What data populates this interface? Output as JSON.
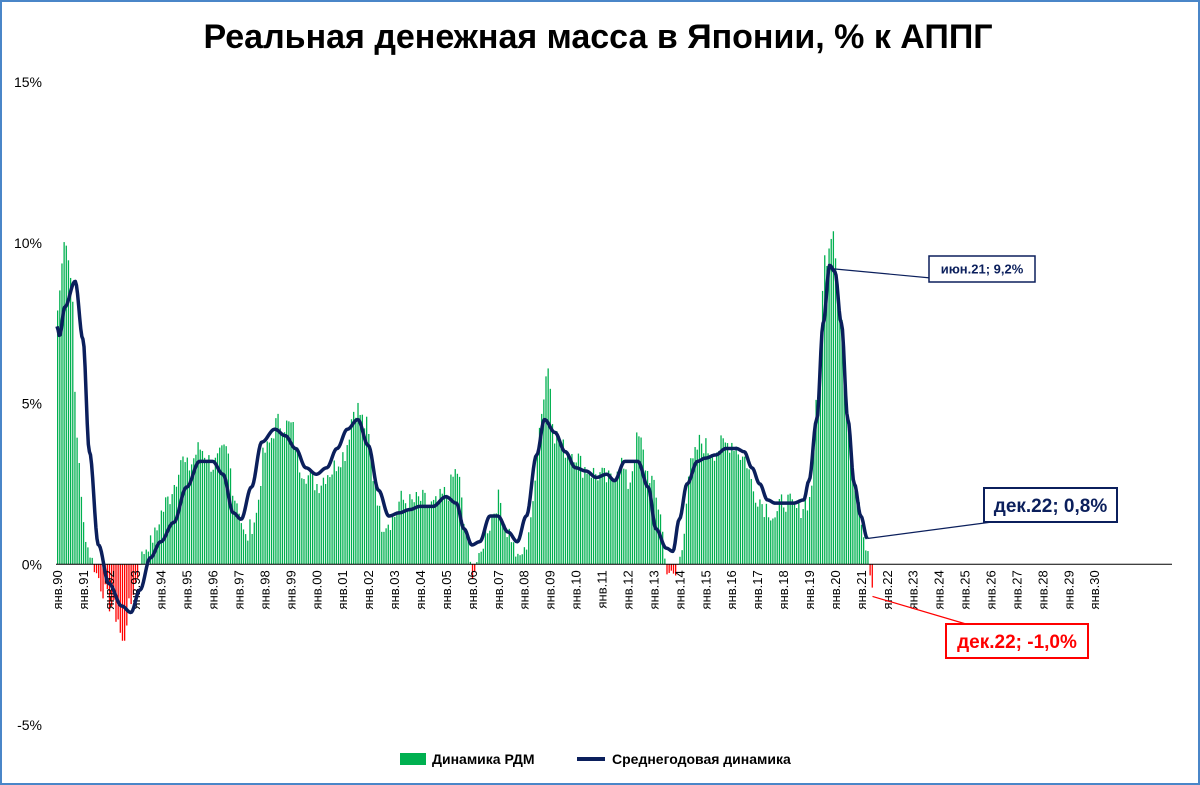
{
  "chart_data": {
    "type": "bar+line",
    "title": "Реальная денежная масса в Японии, % к АППГ",
    "ylim": [
      -5,
      15
    ],
    "y_ticks": [
      -5,
      0,
      5,
      10,
      15
    ],
    "y_tick_labels": [
      "-5%",
      "0%",
      "5%",
      "10%",
      "15%"
    ],
    "x_tick_labels": [
      "янв.90",
      "янв.91",
      "янв.92",
      "янв.93",
      "янв.94",
      "янв.95",
      "янв.96",
      "янв.97",
      "янв.98",
      "янв.99",
      "янв.00",
      "янв.01",
      "янв.02",
      "янв.03",
      "янв.04",
      "янв.05",
      "янв.06",
      "янв.07",
      "янв.08",
      "янв.09",
      "янв.10",
      "янв.11",
      "янв.12",
      "янв.13",
      "янв.14",
      "янв.15",
      "янв.16",
      "янв.17",
      "янв.18",
      "янв.19",
      "янв.20",
      "янв.21",
      "янв.22",
      "янв.23",
      "янв.24",
      "янв.25",
      "янв.26",
      "янв.27",
      "янв.28",
      "янв.29",
      "янв.30"
    ],
    "x_range_years": [
      1990,
      2031
    ],
    "grid": false,
    "legend_position": "bottom",
    "positive_color": "#00b050",
    "negative_color": "#ff0000",
    "line_color": "#0b1f5c",
    "bar_series": {
      "name": "Динамика РДМ",
      "anchors": [
        [
          1990.0,
          7.9
        ],
        [
          1990.25,
          10.2
        ],
        [
          1990.5,
          9.2
        ],
        [
          1990.75,
          4.0
        ],
        [
          1991.0,
          1.2
        ],
        [
          1991.25,
          0.3
        ],
        [
          1991.5,
          -0.3
        ],
        [
          1991.75,
          -0.8
        ],
        [
          1992.0,
          -1.2
        ],
        [
          1992.3,
          -1.6
        ],
        [
          1992.5,
          -2.5
        ],
        [
          1992.75,
          -1.4
        ],
        [
          1993.0,
          -0.6
        ],
        [
          1993.25,
          0.3
        ],
        [
          1993.5,
          0.6
        ],
        [
          1993.75,
          0.9
        ],
        [
          1994.0,
          1.6
        ],
        [
          1994.25,
          2.0
        ],
        [
          1994.5,
          2.5
        ],
        [
          1994.75,
          3.3
        ],
        [
          1995.0,
          3.0
        ],
        [
          1995.5,
          3.6
        ],
        [
          1996.0,
          3.1
        ],
        [
          1996.5,
          3.5
        ],
        [
          1996.9,
          2.0
        ],
        [
          1997.25,
          0.8
        ],
        [
          1997.6,
          1.4
        ],
        [
          1998.0,
          3.5
        ],
        [
          1998.5,
          4.4
        ],
        [
          1999.0,
          4.3
        ],
        [
          1999.4,
          3.0
        ],
        [
          1999.75,
          2.7
        ],
        [
          2000.0,
          2.5
        ],
        [
          2000.5,
          2.9
        ],
        [
          2001.0,
          3.4
        ],
        [
          2001.5,
          4.9
        ],
        [
          2001.9,
          4.3
        ],
        [
          2002.2,
          2.7
        ],
        [
          2002.5,
          1.3
        ],
        [
          2002.9,
          1.4
        ],
        [
          2003.25,
          2.0
        ],
        [
          2003.6,
          1.9
        ],
        [
          2004.0,
          2.0
        ],
        [
          2004.5,
          1.8
        ],
        [
          2005.0,
          2.2
        ],
        [
          2005.4,
          2.9
        ],
        [
          2005.75,
          1.0
        ],
        [
          2006.0,
          -0.3
        ],
        [
          2006.25,
          0.2
        ],
        [
          2006.6,
          1.2
        ],
        [
          2007.0,
          2.0
        ],
        [
          2007.4,
          1.0
        ],
        [
          2007.75,
          0.2
        ],
        [
          2008.0,
          0.4
        ],
        [
          2008.3,
          1.6
        ],
        [
          2008.6,
          4.5
        ],
        [
          2008.9,
          6.1
        ],
        [
          2009.2,
          4.0
        ],
        [
          2009.5,
          3.6
        ],
        [
          2009.9,
          3.5
        ],
        [
          2010.3,
          3.0
        ],
        [
          2010.8,
          2.8
        ],
        [
          2011.3,
          2.6
        ],
        [
          2011.7,
          3.2
        ],
        [
          2012.0,
          2.5
        ],
        [
          2012.4,
          3.9
        ],
        [
          2012.8,
          2.8
        ],
        [
          2013.2,
          1.8
        ],
        [
          2013.5,
          -0.2
        ],
        [
          2013.8,
          -0.4
        ],
        [
          2014.0,
          0.2
        ],
        [
          2014.4,
          3.0
        ],
        [
          2014.8,
          3.8
        ],
        [
          2015.2,
          3.5
        ],
        [
          2015.7,
          3.7
        ],
        [
          2016.0,
          3.8
        ],
        [
          2016.5,
          3.3
        ],
        [
          2016.9,
          2.2
        ],
        [
          2017.3,
          1.8
        ],
        [
          2017.7,
          1.5
        ],
        [
          2018.0,
          2.0
        ],
        [
          2018.5,
          1.7
        ],
        [
          2019.0,
          2.0
        ],
        [
          2019.3,
          5.0
        ],
        [
          2019.6,
          9.5
        ],
        [
          2019.9,
          10.5
        ],
        [
          2020.2,
          7.8
        ],
        [
          2020.5,
          4.5
        ],
        [
          2020.8,
          2.4
        ],
        [
          2021.2,
          0.6
        ],
        [
          2021.45,
          -1.0
        ]
      ]
    },
    "line_series": {
      "name": "Среднегодовая динамика",
      "anchors": [
        [
          1990.0,
          7.4
        ],
        [
          1990.1,
          7.1
        ],
        [
          1990.3,
          8.0
        ],
        [
          1990.7,
          8.8
        ],
        [
          1991.0,
          7.0
        ],
        [
          1991.25,
          3.5
        ],
        [
          1991.6,
          0.6
        ],
        [
          1992.0,
          -0.6
        ],
        [
          1992.5,
          -1.3
        ],
        [
          1992.85,
          -1.5
        ],
        [
          1993.2,
          -0.8
        ],
        [
          1993.6,
          0.2
        ],
        [
          1994.0,
          0.7
        ],
        [
          1994.5,
          1.3
        ],
        [
          1995.0,
          2.4
        ],
        [
          1995.5,
          3.2
        ],
        [
          1996.0,
          3.2
        ],
        [
          1996.4,
          2.8
        ],
        [
          1996.8,
          1.6
        ],
        [
          1997.1,
          1.4
        ],
        [
          1997.5,
          2.4
        ],
        [
          1997.9,
          3.8
        ],
        [
          1998.4,
          4.2
        ],
        [
          1998.8,
          4.0
        ],
        [
          1999.2,
          3.6
        ],
        [
          1999.6,
          3.0
        ],
        [
          2000.0,
          2.8
        ],
        [
          2000.4,
          3.0
        ],
        [
          2000.8,
          3.6
        ],
        [
          2001.2,
          4.2
        ],
        [
          2001.6,
          4.5
        ],
        [
          2002.0,
          3.7
        ],
        [
          2002.4,
          2.3
        ],
        [
          2002.8,
          1.5
        ],
        [
          2003.2,
          1.6
        ],
        [
          2003.6,
          1.7
        ],
        [
          2004.0,
          1.8
        ],
        [
          2004.5,
          1.8
        ],
        [
          2005.0,
          2.1
        ],
        [
          2005.4,
          1.9
        ],
        [
          2005.7,
          1.1
        ],
        [
          2006.0,
          0.6
        ],
        [
          2006.3,
          0.7
        ],
        [
          2006.7,
          1.5
        ],
        [
          2007.0,
          1.5
        ],
        [
          2007.4,
          1.0
        ],
        [
          2007.75,
          0.7
        ],
        [
          2008.1,
          1.5
        ],
        [
          2008.5,
          3.4
        ],
        [
          2008.8,
          4.5
        ],
        [
          2009.2,
          4.1
        ],
        [
          2009.6,
          3.5
        ],
        [
          2010.0,
          3.0
        ],
        [
          2010.4,
          2.9
        ],
        [
          2010.8,
          2.7
        ],
        [
          2011.2,
          2.8
        ],
        [
          2011.5,
          2.6
        ],
        [
          2011.9,
          3.2
        ],
        [
          2012.4,
          3.2
        ],
        [
          2012.8,
          2.4
        ],
        [
          2013.1,
          1.1
        ],
        [
          2013.5,
          0.5
        ],
        [
          2013.75,
          0.4
        ],
        [
          2014.0,
          1.4
        ],
        [
          2014.3,
          2.5
        ],
        [
          2014.7,
          3.2
        ],
        [
          2015.0,
          3.3
        ],
        [
          2015.4,
          3.4
        ],
        [
          2015.8,
          3.6
        ],
        [
          2016.2,
          3.6
        ],
        [
          2016.5,
          3.5
        ],
        [
          2016.8,
          3.0
        ],
        [
          2017.1,
          2.5
        ],
        [
          2017.4,
          2.0
        ],
        [
          2017.7,
          1.9
        ],
        [
          2018.0,
          1.9
        ],
        [
          2018.4,
          1.9
        ],
        [
          2018.8,
          2.0
        ],
        [
          2019.0,
          2.6
        ],
        [
          2019.3,
          4.5
        ],
        [
          2019.55,
          7.5
        ],
        [
          2019.8,
          9.3
        ],
        [
          2020.0,
          9.1
        ],
        [
          2020.25,
          7.5
        ],
        [
          2020.5,
          4.5
        ],
        [
          2020.75,
          2.5
        ],
        [
          2021.0,
          1.5
        ],
        [
          2021.25,
          0.8
        ]
      ]
    },
    "annotations": [
      {
        "text": "июн.21; 9,2%",
        "x": 2019.8,
        "y": 9.2,
        "color": "#0b1f5c"
      },
      {
        "text": "дек.22; 0,8%",
        "x": 2021.25,
        "y": 0.8,
        "color": "#0b1f5c"
      },
      {
        "text": "дек.22; -1,0%",
        "x": 2021.45,
        "y": -1.0,
        "color": "#ff0000"
      }
    ]
  },
  "legend": {
    "bar_label": "Динамика РДМ",
    "line_label": "Среднегодовая динамика"
  }
}
